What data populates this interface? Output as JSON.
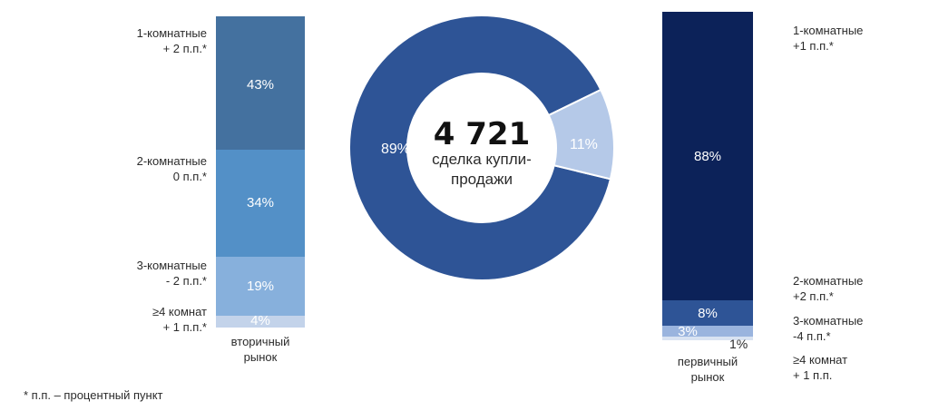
{
  "chart_data": [
    {
      "type": "bar",
      "stacked": true,
      "categories": [
        "вторичный рынок"
      ],
      "series": [
        {
          "name": "1-комнатные",
          "change": "+ 2 п.п.*",
          "value": 43,
          "label": "43%",
          "color": "#44719f"
        },
        {
          "name": "2-комнатные",
          "change": "0 п.п.*",
          "value": 34,
          "label": "34%",
          "color": "#5390c7"
        },
        {
          "name": "3-комнатные",
          "change": "- 2 п.п.*",
          "value": 19,
          "label": "19%",
          "color": "#87b0dc"
        },
        {
          "name": "≥4 комнат",
          "change": "+ 1 п.п.*",
          "value": 4,
          "label": "4%",
          "color": "#c3d3ea"
        }
      ],
      "market_label": [
        "вторичный",
        "рынок"
      ]
    },
    {
      "type": "pie",
      "donut": true,
      "total_value": "4 721",
      "total_label": [
        "сделка купли-",
        "продажи"
      ],
      "slices": [
        {
          "value": 89,
          "label": "89%",
          "color": "#2e5496"
        },
        {
          "value": 11,
          "label": "11%",
          "color": "#b5c9e8"
        }
      ]
    },
    {
      "type": "bar",
      "stacked": true,
      "categories": [
        "первичный рынок"
      ],
      "series": [
        {
          "name": "1-комнатные",
          "change": "+1 п.п.*",
          "value": 88,
          "label": "88%",
          "color": "#0c2259"
        },
        {
          "name": "2-комнатные",
          "change": "+2 п.п.*",
          "value": 8,
          "label": "8%",
          "color": "#2e5496"
        },
        {
          "name": "3-комнатные",
          "change": "-4 п.п.*",
          "value": 3,
          "label": "3%",
          "color": "#9ab4de"
        },
        {
          "name": "≥4 комнат",
          "change": "+ 1 п.п.",
          "value": 1,
          "label": "1%",
          "color": "#d9e3f2"
        }
      ],
      "market_label": [
        "первичный",
        "рынок"
      ]
    }
  ],
  "footnote": "* п.п. – процентный пункт"
}
